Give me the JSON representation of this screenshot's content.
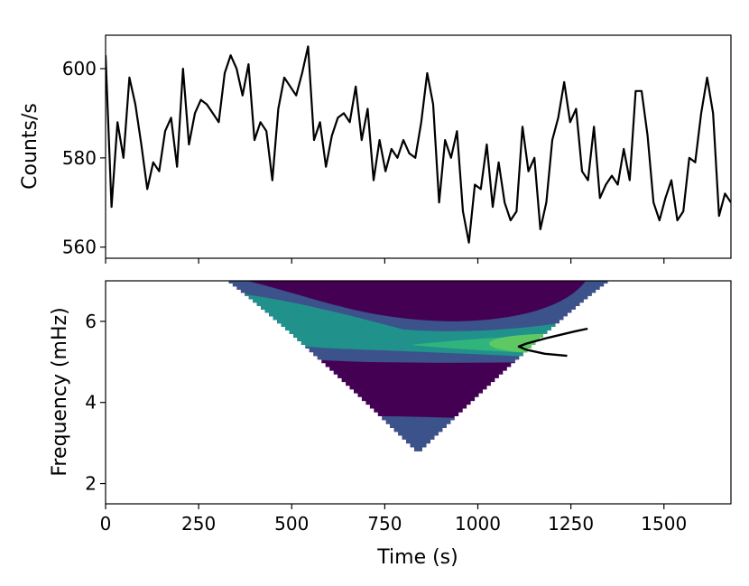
{
  "chart_data": [
    {
      "type": "line",
      "title": "",
      "xlabel": "",
      "ylabel": "Counts/s",
      "xlim": [
        0,
        1680
      ],
      "ylim": [
        557.5,
        607.5
      ],
      "xticks": [
        0,
        250,
        500,
        750,
        1000,
        1250,
        1500
      ],
      "yticks": [
        560,
        580,
        600
      ],
      "ytick_labels": [
        "560",
        "580",
        "600"
      ],
      "grid": false,
      "line_color": "#000000",
      "series": [
        {
          "x": [
            0,
            16,
            32,
            48,
            64,
            80,
            96,
            112,
            128,
            144,
            160,
            176,
            192,
            208,
            224,
            240,
            256,
            272,
            288,
            304,
            320,
            336,
            352,
            368,
            384,
            400,
            416,
            432,
            448,
            464,
            480,
            496,
            512,
            528,
            544,
            560,
            576,
            592,
            608,
            624,
            640,
            656,
            672,
            688,
            704,
            720,
            736,
            752,
            768,
            784,
            800,
            816,
            832,
            848,
            864,
            880,
            896,
            912,
            928,
            944,
            960,
            976,
            992,
            1008,
            1024,
            1040,
            1056,
            1072,
            1088,
            1104,
            1120,
            1136,
            1152,
            1168,
            1184,
            1200,
            1216,
            1232,
            1248,
            1264,
            1280,
            1296,
            1312,
            1328,
            1344,
            1360,
            1376,
            1392,
            1408,
            1424,
            1440,
            1456,
            1472,
            1488,
            1504,
            1520,
            1536,
            1552,
            1568,
            1584,
            1600,
            1616,
            1632,
            1648,
            1664,
            1680
          ],
          "values": [
            603,
            569,
            588,
            580,
            598,
            592,
            583,
            573,
            579,
            577,
            586,
            589,
            578,
            600,
            583,
            590,
            593,
            592,
            590,
            588,
            599,
            603,
            600,
            594,
            601,
            584,
            588,
            586,
            575,
            591,
            598,
            596,
            594,
            599,
            605,
            584,
            588,
            578,
            585,
            589,
            590,
            588,
            596,
            584,
            591,
            575,
            584,
            577,
            582,
            580,
            584,
            581,
            580,
            588,
            599,
            592,
            570,
            584,
            580,
            586,
            568,
            561,
            574,
            573,
            583,
            569,
            579,
            570,
            566,
            568,
            587,
            577,
            580,
            564,
            570,
            584,
            589,
            597,
            588,
            591,
            577,
            575,
            587,
            571,
            574,
            576,
            574,
            582,
            575,
            595,
            595,
            585,
            570,
            566,
            571,
            575,
            566,
            568,
            580,
            579,
            590,
            598,
            590,
            567,
            572,
            570
          ]
        }
      ]
    },
    {
      "type": "heatmap",
      "title": "",
      "xlabel": "Time (s)",
      "ylabel": "Frequency (mHz)",
      "xlim": [
        0,
        1680
      ],
      "ylim": [
        1.5,
        7.0
      ],
      "xticks": [
        0,
        250,
        500,
        750,
        1000,
        1250,
        1500
      ],
      "xtick_labels": [
        "0",
        "250",
        "500",
        "750",
        "1000",
        "1250",
        "1500"
      ],
      "yticks": [
        2,
        4,
        6
      ],
      "ytick_labels": [
        "2",
        "4",
        "6"
      ],
      "colormap": "viridis",
      "cone_of_influence": {
        "apex_time": 840,
        "apex_freq": 2.7,
        "left_edge_time_at_top": 320,
        "right_edge_time_at_top": 1360
      },
      "bands": [
        {
          "label": "low power base",
          "color": "#440154"
        },
        {
          "label": "lower band",
          "color": "#3b528b",
          "freq_range": [
            2.8,
            3.6
          ]
        },
        {
          "label": "mid band",
          "color": "#3b528b",
          "freq_range": [
            4.9,
            5.3
          ]
        },
        {
          "label": "teal upper region",
          "color": "#21918c",
          "freq_range": [
            5.3,
            6.8
          ]
        },
        {
          "label": "peak region",
          "color": "#5ec962",
          "center_time": 1200,
          "center_freq": 5.45
        },
        {
          "label": "maximum",
          "color": "#c8e020",
          "center_time": 1265,
          "center_freq": 5.42
        }
      ],
      "significance_contour": {
        "color": "#000000",
        "points": [
          [
            1240,
            5.15
          ],
          [
            1180,
            5.2
          ],
          [
            1130,
            5.3
          ],
          [
            1110,
            5.38
          ],
          [
            1130,
            5.45
          ],
          [
            1190,
            5.6
          ],
          [
            1260,
            5.75
          ],
          [
            1295,
            5.82
          ]
        ]
      }
    }
  ]
}
